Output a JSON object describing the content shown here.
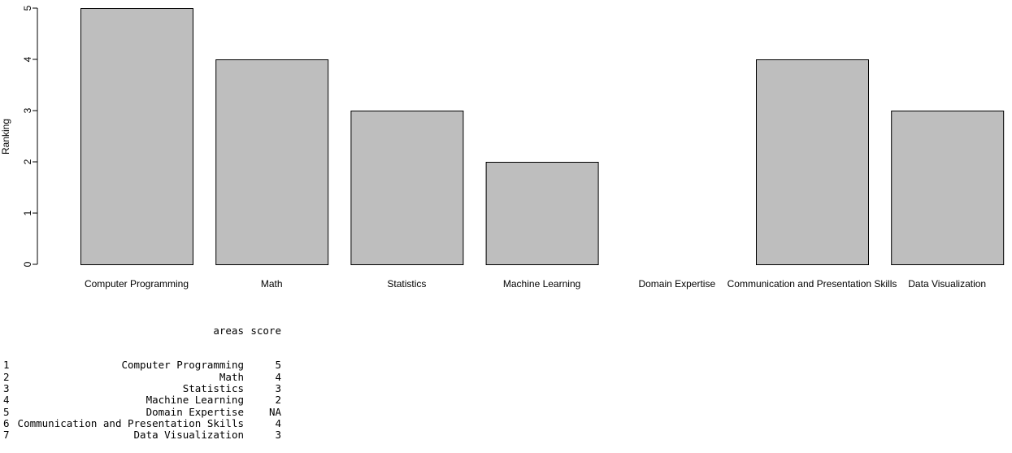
{
  "chart_data": {
    "type": "bar",
    "categories": [
      "Computer Programming",
      "Math",
      "Statistics",
      "Machine Learning",
      "Domain Expertise",
      "Communication and Presentation Skills",
      "Data Visualization"
    ],
    "values": [
      5,
      4,
      3,
      2,
      null,
      4,
      3
    ],
    "title": "",
    "xlabel": "",
    "ylabel": "Ranking",
    "ylim": [
      0,
      5
    ],
    "yticks": [
      0,
      1,
      2,
      3,
      4,
      5
    ],
    "grid": false,
    "colors": {
      "bar_fill": "#bebebe",
      "bar_stroke": "#000000",
      "axis": "#000000"
    }
  },
  "console": {
    "header": {
      "areas": "areas",
      "score": "score"
    },
    "rows": [
      {
        "idx": "1",
        "areas": "Computer Programming",
        "score": "5"
      },
      {
        "idx": "2",
        "areas": "Math",
        "score": "4"
      },
      {
        "idx": "3",
        "areas": "Statistics",
        "score": "3"
      },
      {
        "idx": "4",
        "areas": "Machine Learning",
        "score": "2"
      },
      {
        "idx": "5",
        "areas": "Domain Expertise",
        "score": "NA"
      },
      {
        "idx": "6",
        "areas": "Communication and Presentation Skills",
        "score": "4"
      },
      {
        "idx": "7",
        "areas": "Data Visualization",
        "score": "3"
      }
    ]
  }
}
